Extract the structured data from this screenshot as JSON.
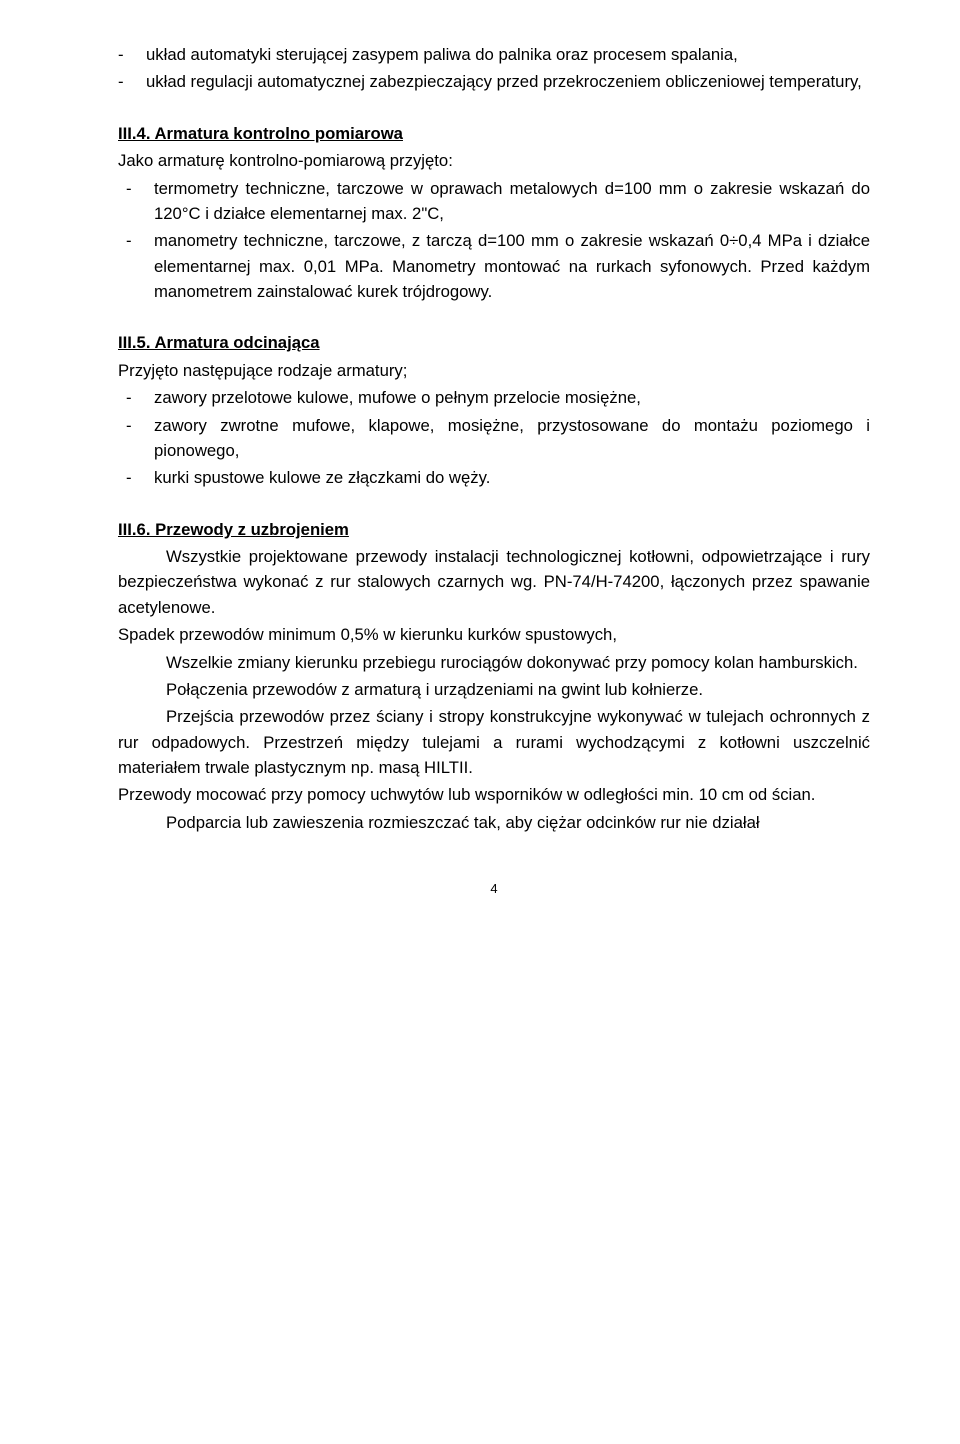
{
  "intro": {
    "item1": "układ automatyki sterującej zasypem paliwa do palnika oraz procesem spalania,",
    "item2": "układ regulacji automatycznej zabezpieczający przed przekroczeniem obliczeniowej temperatury,"
  },
  "section4": {
    "heading": "III.4. Armatura kontrolno pomiarowa",
    "lead": "Jako armaturę kontrolno-pomiarową przyjęto:",
    "item1": "termometry techniczne, tarczowe w oprawach metalowych d=100 mm o zakresie wskazań do 120°C i działce elementarnej max. 2\"C,",
    "item2": "manometry techniczne, tarczowe, z tarczą d=100 mm o zakresie wskazań 0÷0,4 MPa i działce elementarnej max. 0,01 MPa. Manometry montować na rurkach syfonowych. Przed każdym manometrem zainstalować kurek trójdrogowy."
  },
  "section5": {
    "heading": "III.5. Armatura odcinająca",
    "lead": "Przyjęto następujące rodzaje armatury;",
    "item1": "zawory przelotowe kulowe, mufowe o pełnym przelocie mosiężne,",
    "item2": "zawory zwrotne mufowe, klapowe, mosiężne, przystosowane do montażu poziomego i pionowego,",
    "item3": "kurki spustowe kulowe ze złączkami do węży."
  },
  "section6": {
    "heading": "III.6. Przewody z uzbrojeniem",
    "p1": "Wszystkie projektowane przewody instalacji technologicznej kotłowni, odpowietrzające i rury bezpieczeństwa wykonać z rur stalowych czarnych wg. PN-74/H-74200, łączonych przez spawanie acetylenowe.",
    "p2": "Spadek przewodów minimum 0,5% w kierunku kurków spustowych,",
    "p3": "Wszelkie zmiany kierunku przebiegu rurociągów dokonywać przy pomocy kolan hamburskich.",
    "p4": "Połączenia przewodów z armaturą i urządzeniami na gwint lub kołnierze.",
    "p5": "Przejścia przewodów przez ściany i stropy konstrukcyjne wykonywać w tulejach ochronnych z rur odpadowych. Przestrzeń między tulejami a rurami wychodzącymi z kotłowni uszczelnić materiałem trwale plastycznym np. masą HILTII.",
    "p6": "Przewody mocować przy pomocy uchwytów lub wsporników w odległości min. 10 cm od ścian.",
    "p7": "Podparcia lub zawieszenia rozmieszczać tak, aby ciężar odcinków rur nie działał"
  },
  "pagenum": "4"
}
